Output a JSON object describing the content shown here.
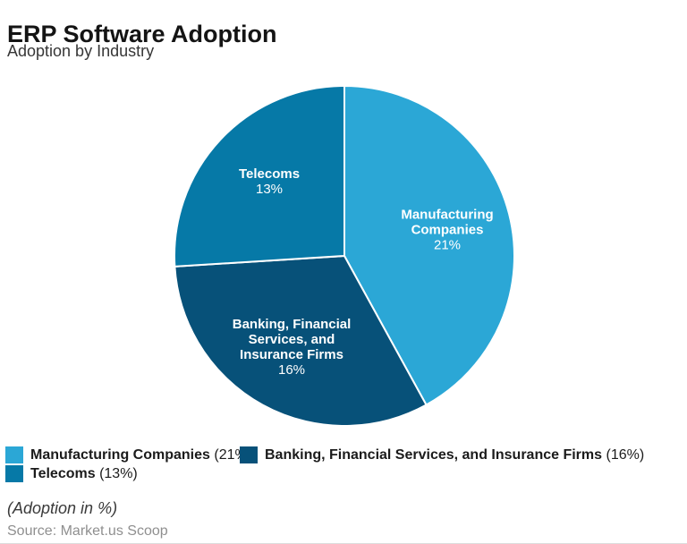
{
  "header": {
    "title": "ERP Software Adoption",
    "subtitle": "Adoption by Industry"
  },
  "chart_data": {
    "type": "pie",
    "title": "ERP Software Adoption",
    "subtitle": "Adoption by Industry",
    "unit": "%",
    "start_angle_deg": 0,
    "direction": "clockwise",
    "legend_position": "bottom-left",
    "slice_border_color": "#ffffff",
    "slice_label_color": "#ffffff",
    "slices": [
      {
        "label": "Manufacturing Companies",
        "value": 21,
        "pct_label": "21%",
        "legend_value": "(21%)",
        "color": "#2BA7D6",
        "wrapped_label": "Manufacturing\nCompanies"
      },
      {
        "label": "Banking, Financial Services, and Insurance Firms",
        "value": 16,
        "pct_label": "16%",
        "legend_value": "(16%)",
        "color": "#075179",
        "wrapped_label": "Banking, Financial\nServices, and\nInsurance Firms"
      },
      {
        "label": "Telecoms",
        "value": 13,
        "pct_label": "13%",
        "legend_value": "(13%)",
        "color": "#0679A7",
        "wrapped_label": "Telecoms"
      }
    ]
  },
  "footer": {
    "note": "(Adoption in %)",
    "source": "Source: Market.us Scoop"
  }
}
